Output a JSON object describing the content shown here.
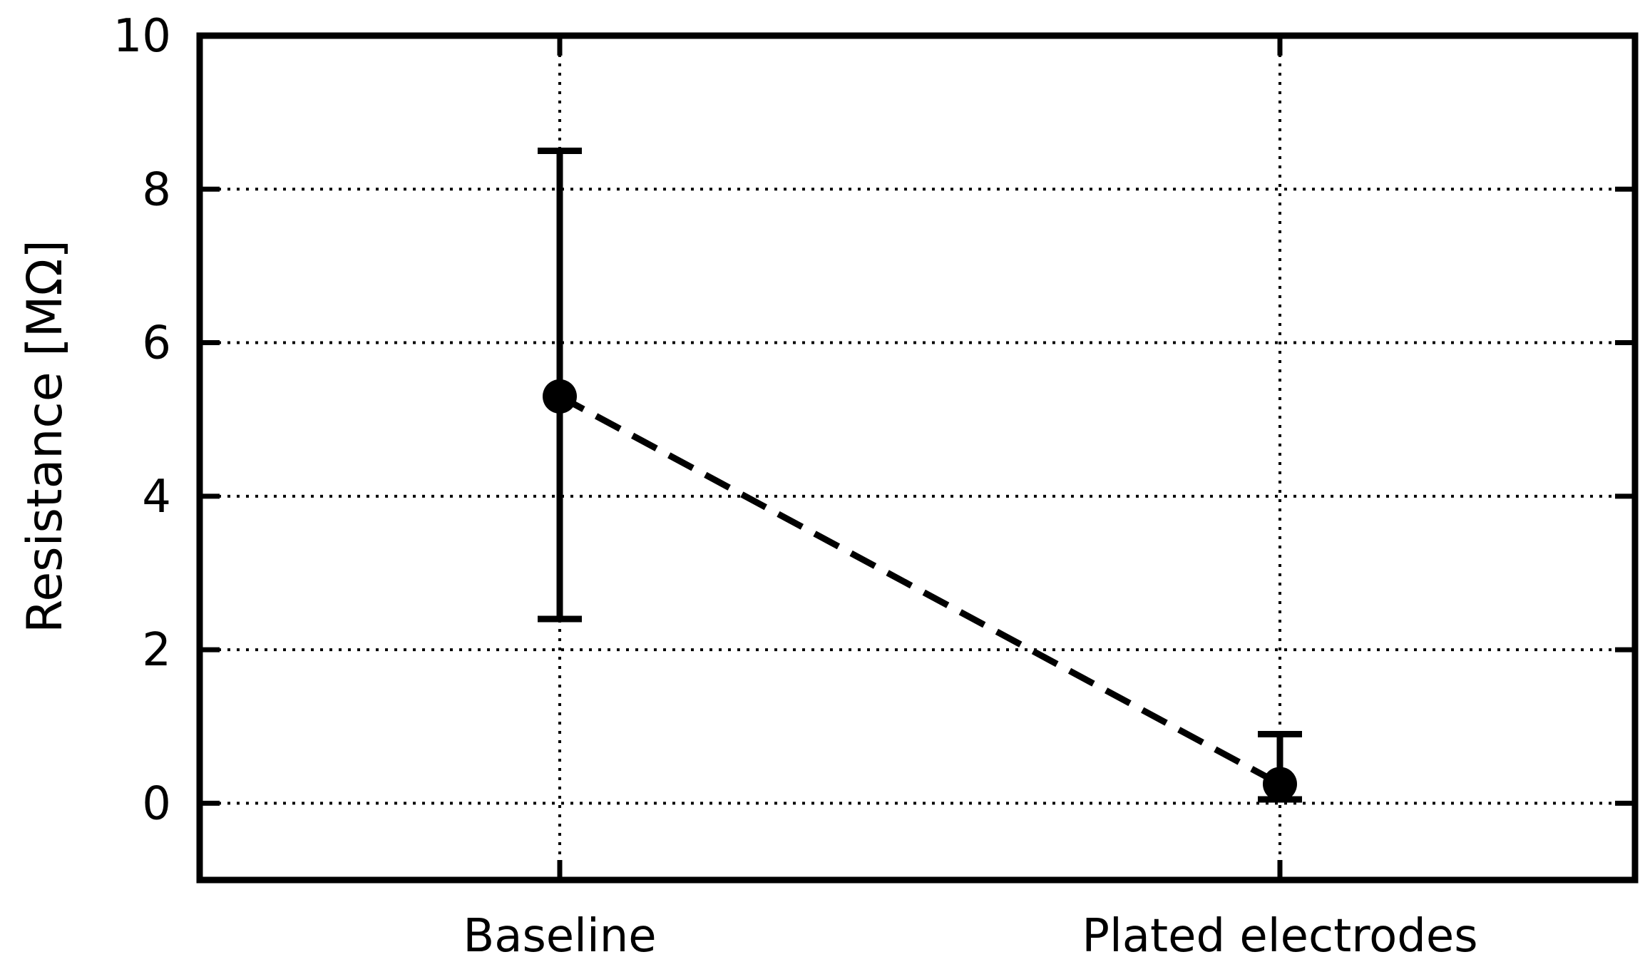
{
  "chart_data": {
    "type": "line",
    "title": "",
    "xlabel": "",
    "ylabel": "Resistance [MΩ]",
    "categories": [
      "Baseline",
      "Plated electrodes"
    ],
    "series": [
      {
        "values": [
          5.3,
          0.25
        ],
        "error_low": [
          2.4,
          0.05
        ],
        "error_high": [
          8.5,
          0.9
        ],
        "line_style": "dashed",
        "marker": "circle"
      }
    ],
    "ylim": [
      -1,
      10
    ],
    "yticks": [
      "0",
      "2",
      "4",
      "6",
      "8",
      "10"
    ],
    "grid": true,
    "grid_style": "dotted",
    "legend": "none",
    "colors": {
      "series": "#000000",
      "grid": "#000000",
      "frame": "#000000"
    }
  }
}
